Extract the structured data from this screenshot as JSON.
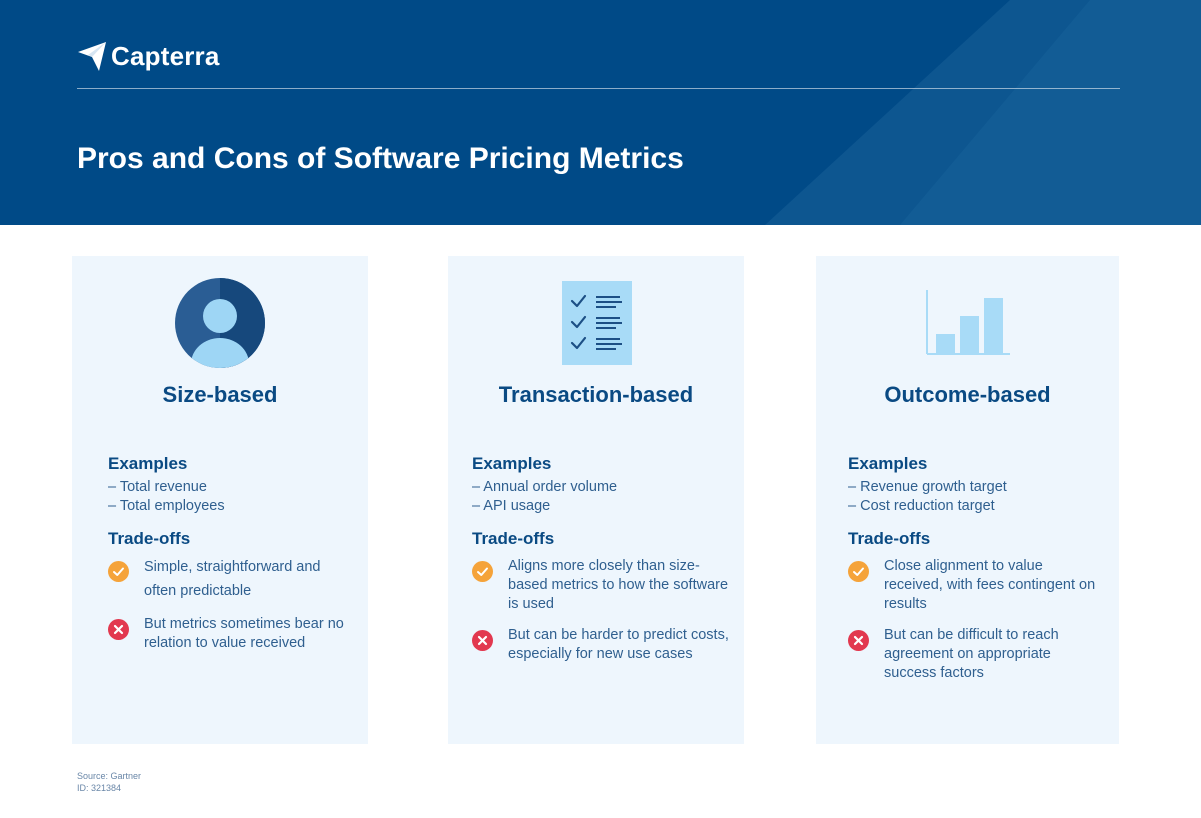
{
  "header": {
    "brand": "Capterra",
    "title": "Pros and Cons of Software Pricing Metrics"
  },
  "colors": {
    "header_bg": "#004a87",
    "card_bg": "#eef6fd",
    "heading_text": "#0a4a83",
    "body_text": "#2f5f8f",
    "pro_icon": "#f5a33a",
    "con_icon": "#e2384f"
  },
  "cards": [
    {
      "icon": "person-avatar-icon",
      "title": "Size-based",
      "examples_heading": "Examples",
      "examples": [
        "– Total revenue",
        "– Total employees"
      ],
      "tradeoffs_heading": "Trade-offs",
      "pro": "Simple, straightforward and often predictable",
      "con": "But metrics sometimes bear no relation to value received"
    },
    {
      "icon": "checklist-icon",
      "title": "Transaction-based",
      "examples_heading": "Examples",
      "examples": [
        "– Annual order volume",
        "– API usage"
      ],
      "tradeoffs_heading": "Trade-offs",
      "pro": "Aligns more closely than size-based metrics to how the software is used",
      "con": "But can be harder to predict costs, especially for new use cases"
    },
    {
      "icon": "bar-chart-icon",
      "title": "Outcome-based",
      "examples_heading": "Examples",
      "examples": [
        "– Revenue growth target",
        "– Cost reduction target"
      ],
      "tradeoffs_heading": "Trade-offs",
      "pro": "Close alignment to value received, with fees contingent on results",
      "con": "But can be difficult to reach agreement on appropriate success factors"
    }
  ],
  "footer": {
    "source": "Source: Gartner",
    "id": "ID: 321384"
  }
}
